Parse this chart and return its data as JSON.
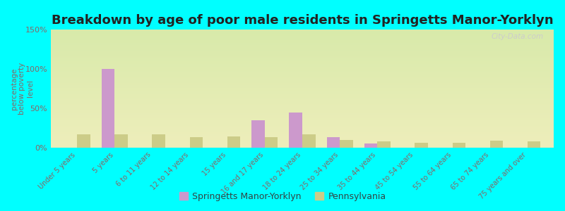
{
  "title": "Breakdown by age of poor male residents in Springetts Manor-Yorklyn",
  "ylabel": "percentage\nbelow poverty\nlevel",
  "categories": [
    "Under 5 years",
    "5 years",
    "6 to 11 years",
    "12 to 14 years",
    "15 years",
    "16 and 17 years",
    "18 to 24 years",
    "25 to 34 years",
    "35 to 44 years",
    "45 to 54 years",
    "55 to 64 years",
    "65 to 74 years",
    "75 years and over"
  ],
  "springetts_values": [
    0,
    100,
    0,
    0,
    0,
    35,
    45,
    13,
    5,
    0,
    0,
    0,
    0
  ],
  "pennsylvania_values": [
    17,
    17,
    17,
    13,
    14,
    13,
    17,
    10,
    8,
    6,
    6,
    9,
    8
  ],
  "springetts_color": "#cc99cc",
  "pennsylvania_color": "#cccc88",
  "background_top": "#d8eaaa",
  "background_bottom": "#eeeebb",
  "ylim": [
    0,
    150
  ],
  "yticks": [
    0,
    50,
    100,
    150
  ],
  "ytick_labels": [
    "0%",
    "50%",
    "100%",
    "150%"
  ],
  "bar_width": 0.35,
  "title_fontsize": 13,
  "tick_color": "#886666",
  "ylabel_color": "#886666",
  "watermark": "City-Data.com",
  "bg_outer": "#00ffff",
  "legend_color": "#334444"
}
